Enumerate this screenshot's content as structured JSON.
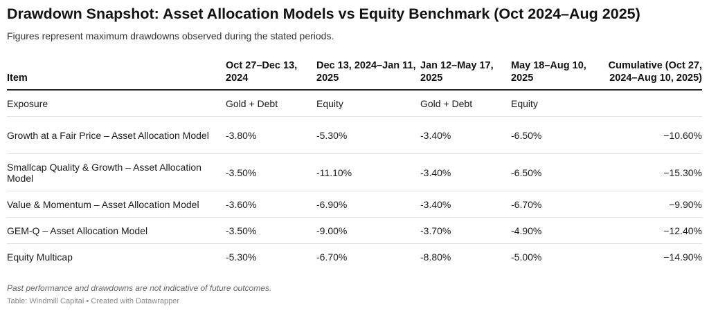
{
  "chart_data": {
    "type": "table",
    "title": "Drawdown Snapshot: Asset Allocation Models vs Equity Benchmark (Oct 2024–Aug 2025)",
    "subtitle": "Figures represent maximum drawdowns observed during the stated periods.",
    "columns": [
      "Item",
      "Oct 27–Dec 13, 2024",
      "Dec 13, 2024–Jan 11, 2025",
      "Jan 12–May 17, 2025",
      "May 18–Aug 10, 2025",
      "Cumulative (Oct 27, 2024–Aug 10, 2025)"
    ],
    "rows": [
      [
        "Exposure",
        "Gold + Debt",
        "Equity",
        "Gold + Debt",
        "Equity",
        ""
      ],
      [
        "Growth at a Fair Price – Asset Allocation Model",
        "-3.80%",
        "-5.30%",
        "-3.40%",
        "-6.50%",
        "−10.60%"
      ],
      [
        "Smallcap Quality & Growth – Asset Allocation Model",
        "-3.50%",
        "-11.10%",
        "-3.40%",
        "-6.50%",
        "−15.30%"
      ],
      [
        "Value & Momentum – Asset Allocation Model",
        "-3.60%",
        "-6.90%",
        "-3.40%",
        "-6.70%",
        "−9.90%"
      ],
      [
        "GEM-Q – Asset Allocation Model",
        "-3.50%",
        "-9.00%",
        "-3.70%",
        "-4.90%",
        "−12.40%"
      ],
      [
        "Equity Multicap",
        "-5.30%",
        "-6.70%",
        "-8.80%",
        "-5.00%",
        "−14.90%"
      ]
    ],
    "notes": "Past performance and drawdowns are not indicative of future outcomes.",
    "source": "Table: Windmill Capital • Created with Datawrapper"
  }
}
